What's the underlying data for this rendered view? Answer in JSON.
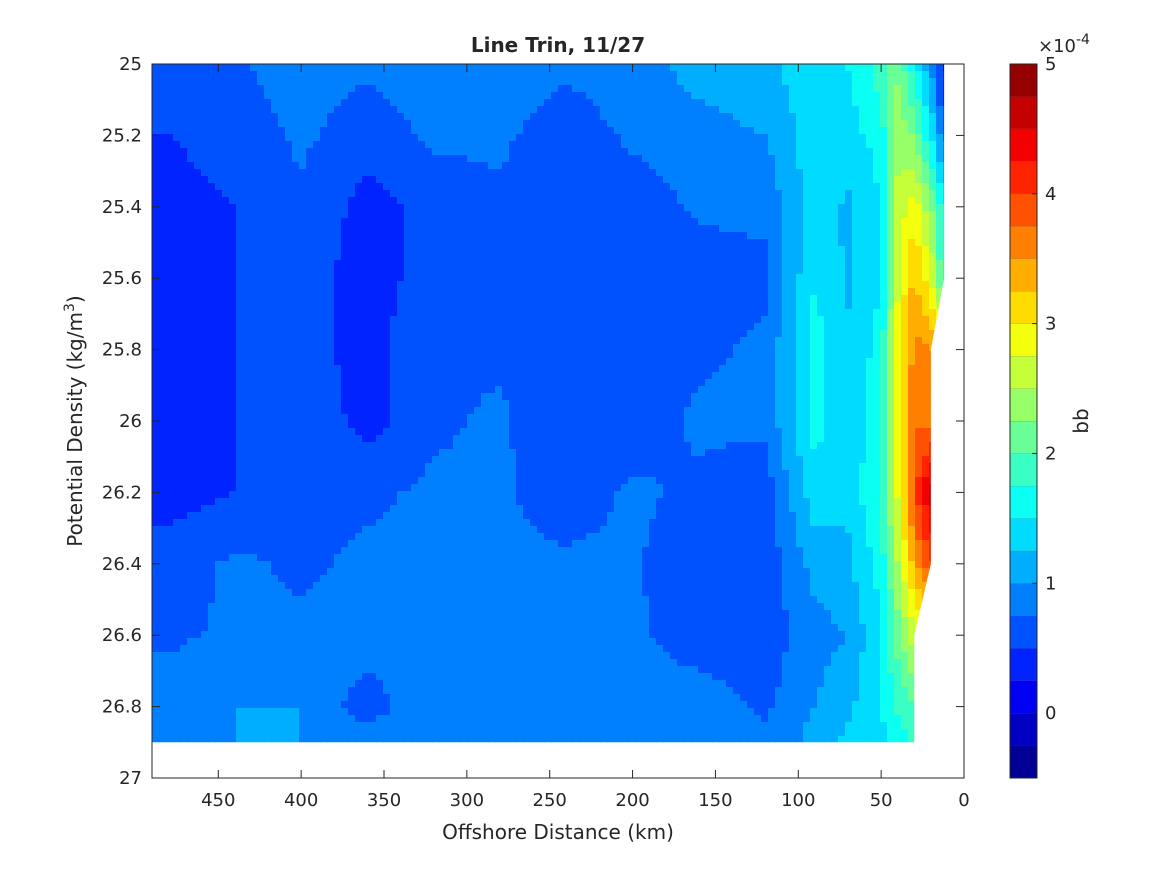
{
  "chart_data": {
    "type": "heatmap",
    "subtype": "filled-contour",
    "title": "Line Trin, 11/27",
    "xlabel": "Offshore Distance (km)",
    "ylabel_main": "Potential Density (kg/m",
    "ylabel_sup": "3",
    "ylabel_end": ")",
    "xlim": [
      490,
      0
    ],
    "x_reversed": true,
    "ylim": [
      25,
      27
    ],
    "y_reversed": true,
    "x_ticks": [
      "450",
      "400",
      "350",
      "300",
      "250",
      "200",
      "150",
      "100",
      "50",
      "0"
    ],
    "x_tick_values": [
      450,
      400,
      350,
      300,
      250,
      200,
      150,
      100,
      50,
      0
    ],
    "y_ticks": [
      "25",
      "25.2",
      "25.4",
      "25.6",
      "25.8",
      "26",
      "26.2",
      "26.4",
      "26.6",
      "26.8",
      "27"
    ],
    "y_tick_values": [
      25,
      25.2,
      25.4,
      25.6,
      25.8,
      26,
      26.2,
      26.4,
      26.6,
      26.8,
      27
    ],
    "grid": false,
    "colorbar": {
      "label": "bb",
      "exponent_base": "×10",
      "exponent_power": "-4",
      "range": [
        -0.5,
        5
      ],
      "level_step": 0.25,
      "colormap": "jet",
      "ticks": [
        "0",
        "1",
        "2",
        "3",
        "4",
        "5"
      ],
      "tick_values": [
        0,
        1,
        2,
        3,
        4,
        5
      ]
    },
    "grid_x_km": [
      480,
      440,
      400,
      360,
      320,
      280,
      240,
      200,
      160,
      120,
      90,
      70,
      50,
      40,
      30,
      20,
      12
    ],
    "grid_y_density": [
      25.0,
      25.2,
      25.4,
      25.6,
      25.8,
      26.0,
      26.2,
      26.4,
      26.6,
      26.8,
      26.9
    ],
    "bb_values_1e-4": [
      [
        0.5,
        0.7,
        0.9,
        0.8,
        0.9,
        0.9,
        0.8,
        0.9,
        1.1,
        1.2,
        1.4,
        1.5,
        1.9,
        2.2,
        1.6,
        1.0,
        0.2
      ],
      [
        0.5,
        0.6,
        0.8,
        0.6,
        0.8,
        0.8,
        0.6,
        0.8,
        0.9,
        1.0,
        1.4,
        1.4,
        1.6,
        2.4,
        2.2,
        1.5,
        0.7
      ],
      [
        0.4,
        0.5,
        0.7,
        0.4,
        0.6,
        0.7,
        0.5,
        0.6,
        0.8,
        0.8,
        1.4,
        1.2,
        1.5,
        2.6,
        2.9,
        2.3,
        1.5
      ],
      [
        0.4,
        0.5,
        0.6,
        0.4,
        0.6,
        0.7,
        0.5,
        0.6,
        0.6,
        0.7,
        1.5,
        1.2,
        1.5,
        2.7,
        3.3,
        2.8,
        1.7
      ],
      [
        0.4,
        0.5,
        0.6,
        0.4,
        0.7,
        0.7,
        0.5,
        0.6,
        0.7,
        0.8,
        1.6,
        1.3,
        1.6,
        2.9,
        3.6,
        3.5,
        null
      ],
      [
        0.4,
        0.5,
        0.7,
        0.4,
        0.7,
        0.8,
        0.5,
        0.6,
        0.8,
        0.8,
        1.6,
        1.3,
        1.7,
        2.9,
        3.7,
        3.7,
        null
      ],
      [
        0.4,
        0.5,
        0.7,
        0.7,
        0.8,
        0.8,
        0.6,
        0.8,
        0.7,
        0.6,
        1.4,
        1.3,
        1.8,
        2.8,
        3.9,
        4.6,
        null
      ],
      [
        0.6,
        0.8,
        0.7,
        0.8,
        0.8,
        0.8,
        0.8,
        0.8,
        0.5,
        0.6,
        1.1,
        1.2,
        1.6,
        2.5,
        3.4,
        4.0,
        null
      ],
      [
        0.7,
        0.8,
        0.8,
        0.9,
        0.9,
        0.8,
        0.8,
        0.8,
        0.6,
        0.6,
        0.9,
        1.0,
        1.5,
        2.1,
        2.7,
        null,
        null
      ],
      [
        0.9,
        1.0,
        1.0,
        0.6,
        1.0,
        0.9,
        0.8,
        0.9,
        0.9,
        0.7,
        1.0,
        1.2,
        1.5,
        1.8,
        2.0,
        null,
        null
      ],
      [
        0.9,
        1.0,
        1.0,
        0.9,
        1.0,
        0.9,
        0.9,
        0.9,
        0.9,
        0.8,
        1.1,
        1.3,
        1.4,
        1.6,
        1.8,
        null,
        null
      ]
    ]
  }
}
